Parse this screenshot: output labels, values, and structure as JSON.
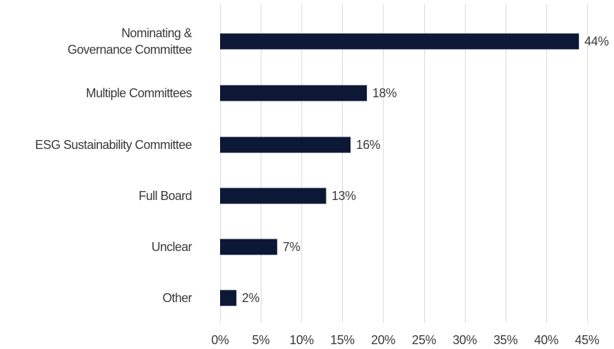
{
  "chart_data": {
    "type": "bar",
    "orientation": "horizontal",
    "title": "",
    "xlabel": "",
    "ylabel": "",
    "categories": [
      [
        "Nominating &",
        "Governance Committee"
      ],
      [
        "Multiple Committees"
      ],
      [
        "ESG Sustainability Committee"
      ],
      [
        "Full Board"
      ],
      [
        "Unclear"
      ],
      [
        "Other"
      ]
    ],
    "values": [
      44,
      18,
      16,
      13,
      7,
      2
    ],
    "value_labels": [
      "44%",
      "18%",
      "16%",
      "13%",
      "7%",
      "2%"
    ],
    "xlim": [
      0,
      45
    ],
    "x_ticks": [
      0,
      5,
      10,
      15,
      20,
      25,
      30,
      35,
      40,
      45
    ],
    "x_tick_labels": [
      "0%",
      "5%",
      "10%",
      "15%",
      "20%",
      "25%",
      "30%",
      "35%",
      "40%",
      "45%"
    ],
    "grid": "vertical",
    "legend": "none",
    "colors": {
      "bar": "#0d1836",
      "grid": "#d9d9d9",
      "text": "#3a3a3a"
    }
  }
}
